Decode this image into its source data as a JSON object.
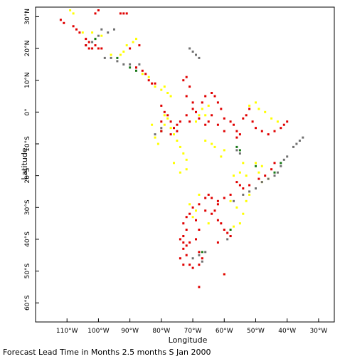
{
  "map": {
    "xlabel": "Longitude",
    "ylabel": "Latitude",
    "lon_range": [
      -120,
      -25
    ],
    "lat_range": [
      -66,
      33
    ],
    "lon_ticks": [
      {
        "value": -110,
        "label": "110°W"
      },
      {
        "value": -100,
        "label": "100°W"
      },
      {
        "value": -90,
        "label": "90°W"
      },
      {
        "value": -80,
        "label": "80°W"
      },
      {
        "value": -70,
        "label": "70°W"
      },
      {
        "value": -60,
        "label": "60°W"
      },
      {
        "value": -50,
        "label": "50°W"
      },
      {
        "value": -40,
        "label": "40°W"
      },
      {
        "value": -30,
        "label": "30°W"
      }
    ],
    "lat_ticks": [
      {
        "value": 30,
        "label": "30°N"
      },
      {
        "value": 20,
        "label": "20°N"
      },
      {
        "value": 10,
        "label": "10°N"
      },
      {
        "value": 0,
        "label": "0°"
      },
      {
        "value": -10,
        "label": "10°S"
      },
      {
        "value": -20,
        "label": "20°S"
      },
      {
        "value": -30,
        "label": "30°S"
      },
      {
        "value": -40,
        "label": "40°S"
      },
      {
        "value": -50,
        "label": "50°S"
      },
      {
        "value": -60,
        "label": "60°S"
      }
    ],
    "colors": {
      "red": "#e00000",
      "yellow": "#ffff00",
      "gray": "#707070",
      "green": "#1a7a1a"
    },
    "stations": {
      "red": [
        [
          -112,
          29
        ],
        [
          -111,
          28
        ],
        [
          -108,
          27
        ],
        [
          -107,
          26
        ],
        [
          -106,
          25
        ],
        [
          -104,
          23
        ],
        [
          -103,
          22
        ],
        [
          -104,
          21
        ],
        [
          -103,
          20
        ],
        [
          -102,
          20
        ],
        [
          -101,
          21
        ],
        [
          -100,
          20
        ],
        [
          -99,
          20
        ],
        [
          -101,
          31
        ],
        [
          -100,
          32
        ],
        [
          -93,
          31
        ],
        [
          -92,
          31
        ],
        [
          -91,
          31
        ],
        [
          -90,
          20
        ],
        [
          -87,
          21
        ],
        [
          -88,
          14
        ],
        [
          -86,
          13
        ],
        [
          -85,
          12
        ],
        [
          -84,
          10
        ],
        [
          -83,
          9
        ],
        [
          -82,
          9
        ],
        [
          -80,
          2
        ],
        [
          -79,
          0
        ],
        [
          -78,
          -1
        ],
        [
          -77,
          -3
        ],
        [
          -76,
          -5
        ],
        [
          -75,
          -6
        ],
        [
          -74,
          -3
        ],
        [
          -73,
          10
        ],
        [
          -72,
          11
        ],
        [
          -71,
          8
        ],
        [
          -72,
          5
        ],
        [
          -70,
          3
        ],
        [
          -70,
          1
        ],
        [
          -69,
          0
        ],
        [
          -68,
          -2
        ],
        [
          -67,
          3
        ],
        [
          -66,
          5
        ],
        [
          -64,
          6
        ],
        [
          -63,
          5
        ],
        [
          -62,
          3
        ],
        [
          -61,
          1
        ],
        [
          -60,
          -2
        ],
        [
          -58,
          -3
        ],
        [
          -57,
          -4
        ],
        [
          -56,
          -6
        ],
        [
          -55,
          -7
        ],
        [
          -54,
          -2
        ],
        [
          -53,
          -1
        ],
        [
          -52,
          1
        ],
        [
          -51,
          -3
        ],
        [
          -50,
          -5
        ],
        [
          -48,
          -6
        ],
        [
          -46,
          -7
        ],
        [
          -44,
          -6
        ],
        [
          -42,
          -5
        ],
        [
          -41,
          -4
        ],
        [
          -40,
          -3
        ],
        [
          -44,
          -16
        ],
        [
          -45,
          -18
        ],
        [
          -47,
          -20
        ],
        [
          -49,
          -21
        ],
        [
          -52,
          -23
        ],
        [
          -54,
          -24
        ],
        [
          -55,
          -23
        ],
        [
          -56,
          -22
        ],
        [
          -58,
          -26
        ],
        [
          -60,
          -27
        ],
        [
          -62,
          -28
        ],
        [
          -64,
          -27
        ],
        [
          -65,
          -26
        ],
        [
          -66,
          -27
        ],
        [
          -68,
          -29
        ],
        [
          -70,
          -30
        ],
        [
          -71,
          -32
        ],
        [
          -72,
          -33
        ],
        [
          -73,
          -35
        ],
        [
          -72,
          -37
        ],
        [
          -73,
          -39
        ],
        [
          -74,
          -40
        ],
        [
          -73,
          -41
        ],
        [
          -72,
          -42
        ],
        [
          -71,
          -41
        ],
        [
          -73,
          -43
        ],
        [
          -72,
          -45
        ],
        [
          -74,
          -46
        ],
        [
          -73,
          -48
        ],
        [
          -71,
          -48
        ],
        [
          -70,
          -49
        ],
        [
          -68,
          -48
        ],
        [
          -67,
          -46
        ],
        [
          -68,
          -44
        ],
        [
          -69,
          -40
        ],
        [
          -68,
          -37
        ],
        [
          -69,
          -34
        ],
        [
          -66,
          -31
        ],
        [
          -64,
          -32
        ],
        [
          -62,
          -34
        ],
        [
          -61,
          -35
        ],
        [
          -60,
          -37
        ],
        [
          -59,
          -38
        ],
        [
          -58,
          -39
        ],
        [
          -62,
          -41
        ],
        [
          -68,
          -55
        ],
        [
          -60,
          -51
        ],
        [
          -64,
          -1
        ],
        [
          -65,
          -3
        ],
        [
          -66,
          -4
        ],
        [
          -62,
          -4
        ],
        [
          -60,
          -6
        ],
        [
          -56,
          -8
        ],
        [
          -71,
          -3
        ],
        [
          -72,
          -1
        ],
        [
          -75,
          -4
        ],
        [
          -77,
          -7
        ],
        [
          -80,
          -6
        ],
        [
          -80,
          -3
        ],
        [
          -62,
          -29
        ],
        [
          -63,
          -31
        ]
      ],
      "yellow": [
        [
          -109,
          32
        ],
        [
          -108,
          31
        ],
        [
          -105,
          25
        ],
        [
          -102,
          25
        ],
        [
          -99,
          24
        ],
        [
          -96,
          18
        ],
        [
          -93,
          18
        ],
        [
          -92,
          19
        ],
        [
          -91,
          21
        ],
        [
          -89,
          22
        ],
        [
          -88,
          23
        ],
        [
          -86,
          12
        ],
        [
          -84,
          11
        ],
        [
          -82,
          8
        ],
        [
          -80,
          7
        ],
        [
          -79,
          8
        ],
        [
          -78,
          6
        ],
        [
          -77,
          5
        ],
        [
          -79,
          -1
        ],
        [
          -78,
          -2
        ],
        [
          -77,
          -5
        ],
        [
          -76,
          -7
        ],
        [
          -75,
          -9
        ],
        [
          -74,
          -11
        ],
        [
          -73,
          -13
        ],
        [
          -72,
          -15
        ],
        [
          -72,
          -18
        ],
        [
          -69,
          -3
        ],
        [
          -68,
          -1
        ],
        [
          -67,
          1
        ],
        [
          -66,
          -1
        ],
        [
          -65,
          2
        ],
        [
          -66,
          -9
        ],
        [
          -64,
          -10
        ],
        [
          -63,
          -11
        ],
        [
          -52,
          2
        ],
        [
          -50,
          3
        ],
        [
          -49,
          1
        ],
        [
          -47,
          0
        ],
        [
          -45,
          -2
        ],
        [
          -43,
          -3
        ],
        [
          -50,
          -16
        ],
        [
          -48,
          -17
        ],
        [
          -49,
          -19
        ],
        [
          -46,
          -21
        ],
        [
          -48,
          -22
        ],
        [
          -53,
          -20
        ],
        [
          -55,
          -19
        ],
        [
          -57,
          -20
        ],
        [
          -54,
          -16
        ],
        [
          -60,
          -12
        ],
        [
          -61,
          -14
        ],
        [
          -69,
          -31
        ],
        [
          -70,
          -33
        ],
        [
          -71,
          -29
        ],
        [
          -68,
          -26
        ],
        [
          -54,
          -32
        ],
        [
          -56,
          -30
        ],
        [
          -58,
          -28
        ],
        [
          -53,
          -28
        ],
        [
          -52,
          -26
        ],
        [
          -55,
          -35
        ],
        [
          -57,
          -36
        ],
        [
          -65,
          -35
        ],
        [
          -81,
          -10
        ],
        [
          -82,
          -8
        ],
        [
          -83,
          -4
        ],
        [
          -79,
          -4
        ],
        [
          -76,
          -16
        ],
        [
          -74,
          -19
        ],
        [
          -60,
          -51
        ]
      ],
      "gray": [
        [
          -104,
          21
        ],
        [
          -102,
          22
        ],
        [
          -101,
          23
        ],
        [
          -100,
          24
        ],
        [
          -98,
          17
        ],
        [
          -96,
          17
        ],
        [
          -94,
          16
        ],
        [
          -92,
          15
        ],
        [
          -90,
          15
        ],
        [
          -88,
          14
        ],
        [
          -87,
          15
        ],
        [
          -71,
          20
        ],
        [
          -70,
          19
        ],
        [
          -69,
          18
        ],
        [
          -68,
          17
        ],
        [
          -35,
          -8
        ],
        [
          -36,
          -9
        ],
        [
          -37,
          -10
        ],
        [
          -38,
          -11
        ],
        [
          -40,
          -14
        ],
        [
          -41,
          -15
        ],
        [
          -42,
          -17
        ],
        [
          -43,
          -19
        ],
        [
          -44,
          -20
        ],
        [
          -46,
          -21
        ],
        [
          -48,
          -22
        ],
        [
          -50,
          -24
        ],
        [
          -52,
          -25
        ],
        [
          -54,
          -26
        ],
        [
          -57,
          -28
        ],
        [
          -56,
          -12
        ],
        [
          -55,
          -13
        ],
        [
          -80,
          -5
        ],
        [
          -82,
          -7
        ],
        [
          -68,
          -45
        ],
        [
          -67,
          -47
        ],
        [
          -66,
          -44
        ],
        [
          -70,
          -46
        ],
        [
          -58,
          -39
        ],
        [
          -59,
          -40
        ],
        [
          -99,
          26
        ],
        [
          -97,
          25
        ],
        [
          -95,
          26
        ]
      ],
      "green": [
        [
          -101,
          23
        ],
        [
          -94,
          17
        ],
        [
          -90,
          14
        ],
        [
          -88,
          13
        ],
        [
          -80,
          -6
        ],
        [
          -55,
          -12
        ],
        [
          -56,
          -11
        ],
        [
          -50,
          -17
        ],
        [
          -44,
          -19
        ],
        [
          -42,
          -16
        ],
        [
          -67,
          -44
        ],
        [
          -58,
          -37
        ]
      ]
    }
  },
  "footer": {
    "text": "Forecast Lead Time in Months 2.5 months S Jan 2000"
  }
}
